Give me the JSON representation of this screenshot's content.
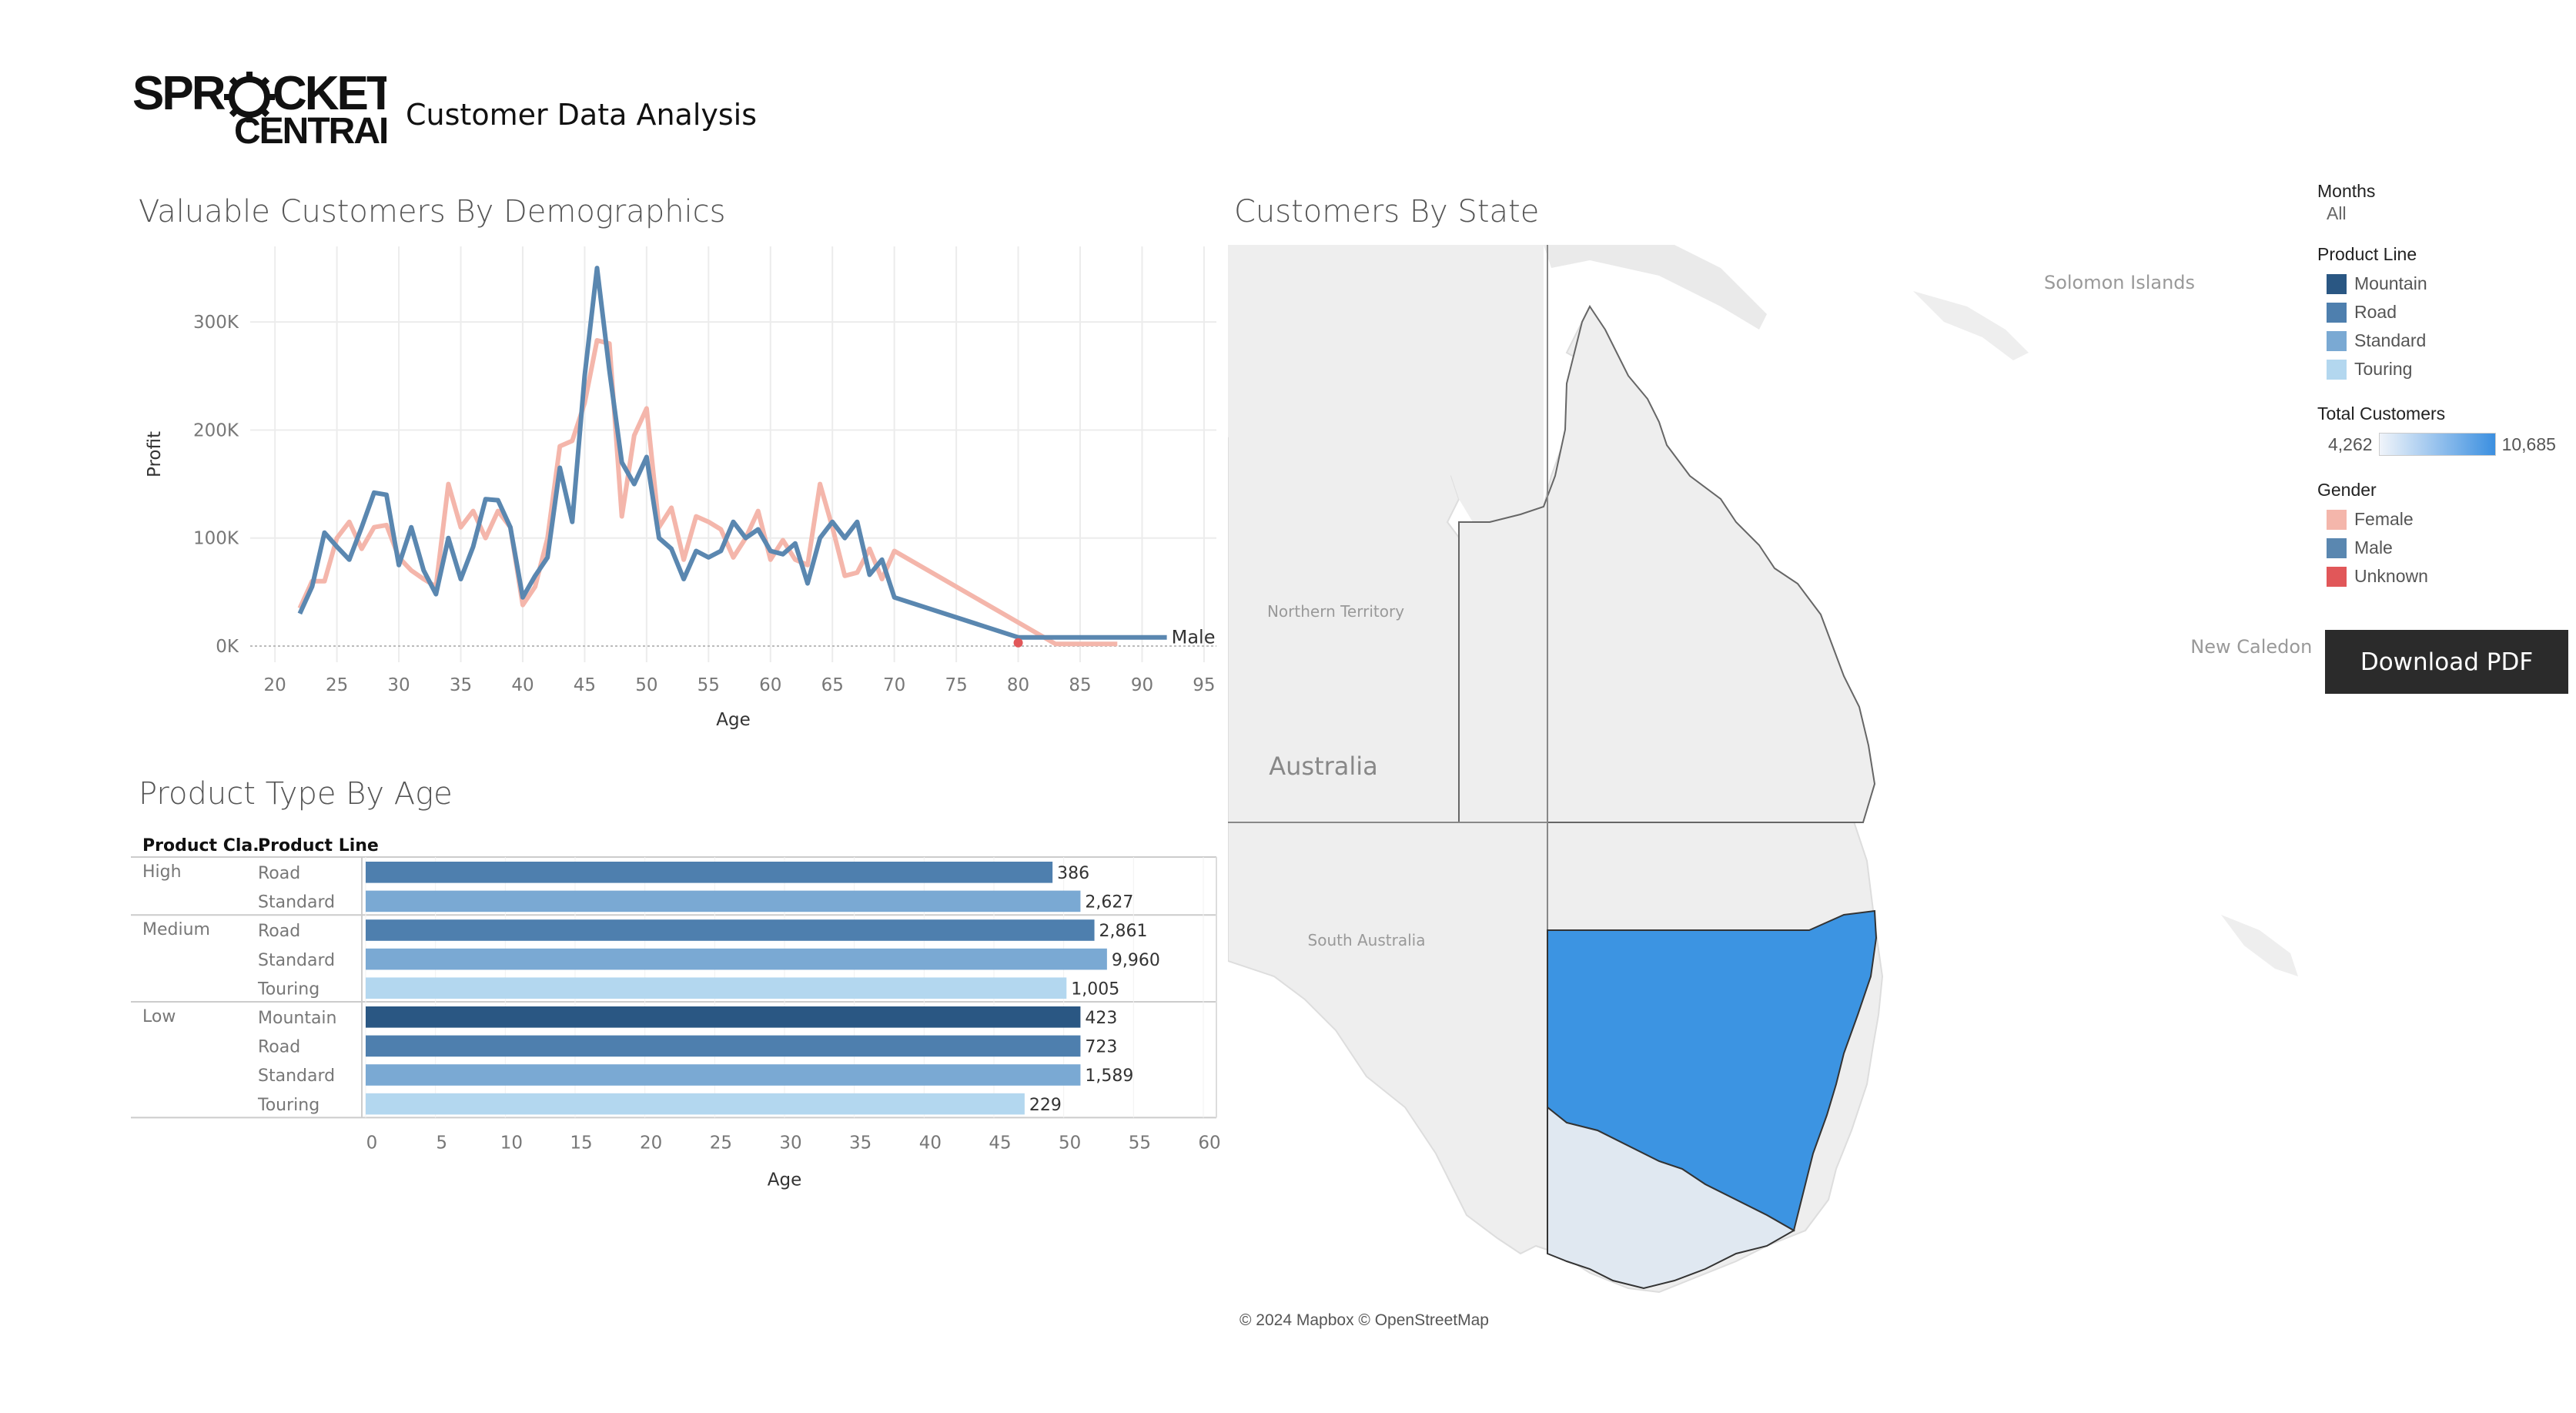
{
  "header": {
    "logo_line1": "SPROCKET",
    "logo_line2": "CENTRAL",
    "title": "Customer Data Analysis"
  },
  "sections": {
    "line_title": "Valuable Customers By Demographics",
    "bar_title": "Product Type By Age",
    "map_title": "Customers By State"
  },
  "legend": {
    "months_label": "Months",
    "months_value": "All",
    "product_line_label": "Product Line",
    "product_lines": [
      {
        "name": "Mountain",
        "color": "#2a5783"
      },
      {
        "name": "Road",
        "color": "#4e7fae"
      },
      {
        "name": "Standard",
        "color": "#7aa9d3"
      },
      {
        "name": "Touring",
        "color": "#b3d7ef"
      }
    ],
    "total_customers_label": "Total Customers",
    "total_min": "4,262",
    "total_max": "10,685",
    "gender_label": "Gender",
    "genders": [
      {
        "name": "Female",
        "color": "#f4b6ab"
      },
      {
        "name": "Male",
        "color": "#5a87b0"
      },
      {
        "name": "Unknown",
        "color": "#e15759"
      }
    ],
    "download_label": "Download PDF"
  },
  "map": {
    "labels": {
      "solomon": "Solomon Islands",
      "new_caledonia": "New Caledonia",
      "northern_territory": "Northern Territory",
      "australia": "Australia",
      "south_australia": "South Australia"
    },
    "colors": {
      "nsw": "#3c94e2",
      "vic": "#e0e8f1",
      "land": "#eeeeee",
      "sea": "#ffffff"
    },
    "attribution": "© 2024 Mapbox © OpenStreetMap"
  },
  "chart_data": [
    {
      "type": "line",
      "title": "Valuable Customers By Demographics",
      "xlabel": "Age",
      "ylabel": "Profit",
      "xlim": [
        18,
        96
      ],
      "ylim": [
        -15000,
        370000
      ],
      "x_ticks": [
        20,
        25,
        30,
        35,
        40,
        45,
        50,
        55,
        60,
        65,
        70,
        75,
        80,
        85,
        90,
        95
      ],
      "y_ticks": [
        0,
        100000,
        200000,
        300000
      ],
      "y_tick_labels": [
        "0K",
        "100K",
        "200K",
        "300K"
      ],
      "grid": true,
      "series": [
        {
          "name": "Male",
          "color": "#5a87b0",
          "end_label": "Male",
          "points": [
            [
              22,
              30000
            ],
            [
              23,
              55000
            ],
            [
              24,
              105000
            ],
            [
              25,
              92000
            ],
            [
              26,
              80000
            ],
            [
              27,
              110000
            ],
            [
              28,
              142000
            ],
            [
              29,
              140000
            ],
            [
              30,
              75000
            ],
            [
              31,
              110000
            ],
            [
              32,
              70000
            ],
            [
              33,
              48000
            ],
            [
              34,
              100000
            ],
            [
              35,
              62000
            ],
            [
              36,
              92000
            ],
            [
              37,
              136000
            ],
            [
              38,
              135000
            ],
            [
              39,
              110000
            ],
            [
              40,
              45000
            ],
            [
              41,
              65000
            ],
            [
              42,
              82000
            ],
            [
              43,
              165000
            ],
            [
              44,
              115000
            ],
            [
              45,
              250000
            ],
            [
              46,
              350000
            ],
            [
              47,
              255000
            ],
            [
              48,
              170000
            ],
            [
              49,
              150000
            ],
            [
              50,
              175000
            ],
            [
              51,
              100000
            ],
            [
              52,
              90000
            ],
            [
              53,
              62000
            ],
            [
              54,
              88000
            ],
            [
              55,
              82000
            ],
            [
              56,
              88000
            ],
            [
              57,
              115000
            ],
            [
              58,
              100000
            ],
            [
              59,
              108000
            ],
            [
              60,
              88000
            ],
            [
              61,
              85000
            ],
            [
              62,
              95000
            ],
            [
              63,
              58000
            ],
            [
              64,
              100000
            ],
            [
              65,
              115000
            ],
            [
              66,
              100000
            ],
            [
              67,
              115000
            ],
            [
              68,
              66000
            ],
            [
              69,
              80000
            ],
            [
              70,
              45000
            ],
            [
              80,
              8000
            ],
            [
              92,
              8000
            ]
          ]
        },
        {
          "name": "Female",
          "color": "#f4b6ab",
          "points": [
            [
              22,
              35000
            ],
            [
              23,
              60000
            ],
            [
              24,
              60000
            ],
            [
              25,
              100000
            ],
            [
              26,
              115000
            ],
            [
              27,
              90000
            ],
            [
              28,
              110000
            ],
            [
              29,
              112000
            ],
            [
              30,
              82000
            ],
            [
              31,
              70000
            ],
            [
              32,
              62000
            ],
            [
              33,
              55000
            ],
            [
              34,
              150000
            ],
            [
              35,
              110000
            ],
            [
              36,
              125000
            ],
            [
              37,
              100000
            ],
            [
              38,
              125000
            ],
            [
              39,
              110000
            ],
            [
              40,
              38000
            ],
            [
              41,
              55000
            ],
            [
              42,
              100000
            ],
            [
              43,
              185000
            ],
            [
              44,
              190000
            ],
            [
              45,
              225000
            ],
            [
              46,
              283000
            ],
            [
              47,
              280000
            ],
            [
              48,
              120000
            ],
            [
              49,
              195000
            ],
            [
              50,
              220000
            ],
            [
              51,
              110000
            ],
            [
              52,
              128000
            ],
            [
              53,
              80000
            ],
            [
              54,
              120000
            ],
            [
              55,
              115000
            ],
            [
              56,
              108000
            ],
            [
              57,
              82000
            ],
            [
              58,
              100000
            ],
            [
              59,
              125000
            ],
            [
              60,
              80000
            ],
            [
              61,
              98000
            ],
            [
              62,
              80000
            ],
            [
              63,
              75000
            ],
            [
              64,
              150000
            ],
            [
              65,
              110000
            ],
            [
              66,
              65000
            ],
            [
              67,
              68000
            ],
            [
              68,
              90000
            ],
            [
              69,
              62000
            ],
            [
              70,
              88000
            ],
            [
              83,
              2000
            ],
            [
              88,
              2000
            ]
          ]
        },
        {
          "name": "Unknown",
          "color": "#e15759",
          "points": [
            [
              80,
              3000
            ]
          ]
        }
      ]
    },
    {
      "type": "bar",
      "orientation": "horizontal",
      "title": "Product Type By Age",
      "column_headers": [
        "Product Cla..",
        "Product Line"
      ],
      "xlabel": "Age",
      "xlim": [
        0,
        60
      ],
      "x_ticks": [
        0,
        5,
        10,
        15,
        20,
        25,
        30,
        35,
        40,
        45,
        50,
        55,
        60
      ],
      "groups": [
        {
          "class": "High",
          "rows": [
            {
              "line": "Road",
              "value": 49.2,
              "label": "386",
              "color": "#4e7fae"
            },
            {
              "line": "Standard",
              "value": 51.2,
              "label": "2,627",
              "color": "#7aa9d3"
            }
          ]
        },
        {
          "class": "Medium",
          "rows": [
            {
              "line": "Road",
              "value": 52.2,
              "label": "2,861",
              "color": "#4e7fae"
            },
            {
              "line": "Standard",
              "value": 53.1,
              "label": "9,960",
              "color": "#7aa9d3"
            },
            {
              "line": "Touring",
              "value": 50.2,
              "label": "1,005",
              "color": "#b3d7ef"
            }
          ]
        },
        {
          "class": "Low",
          "rows": [
            {
              "line": "Mountain",
              "value": 51.2,
              "label": "423",
              "color": "#2a5783"
            },
            {
              "line": "Road",
              "value": 51.2,
              "label": "723",
              "color": "#4e7fae"
            },
            {
              "line": "Standard",
              "value": 51.2,
              "label": "1,589",
              "color": "#7aa9d3"
            },
            {
              "line": "Touring",
              "value": 47.2,
              "label": "229",
              "color": "#b3d7ef"
            }
          ]
        }
      ]
    }
  ]
}
